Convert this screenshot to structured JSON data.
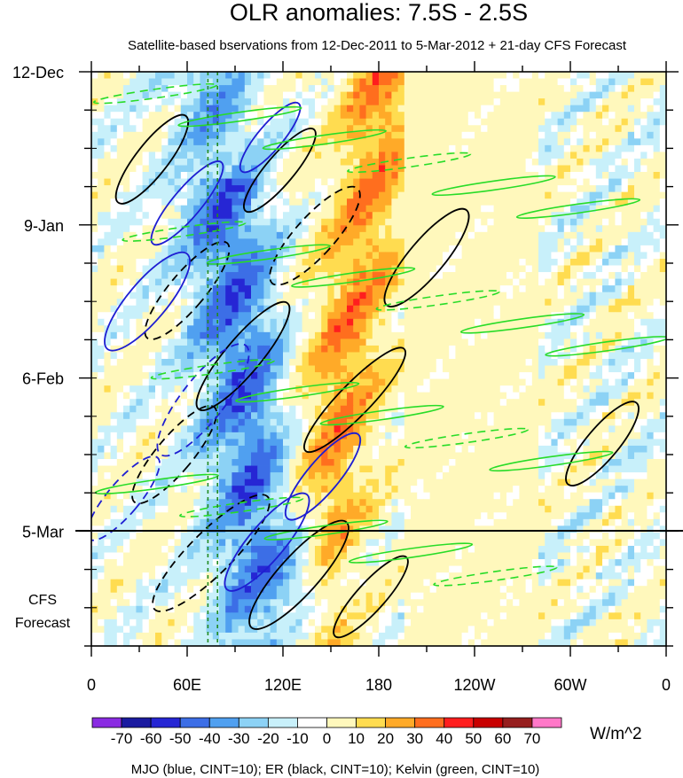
{
  "chart_data": {
    "type": "heatmap",
    "title": "OLR anomalies: 7.5S - 2.5S",
    "subtitle": "Satellite-based bservations from 12-Dec-2011 to 5-Mar-2012 + 21-day CFS Forecast",
    "x_ticks": [
      "0",
      "60E",
      "120E",
      "180",
      "120W",
      "60W",
      "0"
    ],
    "x_tick_lon": [
      0,
      60,
      120,
      180,
      240,
      300,
      360
    ],
    "xlim": [
      0,
      360
    ],
    "y_ticks": [
      "12-Dec",
      "9-Jan",
      "6-Feb",
      "5-Mar"
    ],
    "y_tick_day": [
      0,
      28,
      56,
      84
    ],
    "ylim_days": [
      0,
      105
    ],
    "forecast_start_day": 84,
    "forecast_label": [
      "CFS",
      "Forecast"
    ],
    "colorbar": {
      "labels": [
        "-70",
        "-60",
        "-50",
        "-40",
        "-30",
        "-20",
        "-10",
        "0",
        "10",
        "20",
        "30",
        "40",
        "50",
        "60",
        "70"
      ],
      "colors": [
        "#8a2be2",
        "#1a1aa0",
        "#2626d4",
        "#3c6ee6",
        "#50a0f0",
        "#8cd2f5",
        "#c8f0fa",
        "#ffffff",
        "#fff8bc",
        "#ffdc50",
        "#ffaa28",
        "#ff6e1e",
        "#ff1e1e",
        "#c80000",
        "#961e1e",
        "#ff78c8"
      ],
      "units": "W/m^2"
    },
    "contours": {
      "mjo": {
        "color": "#1e1ed2"
      },
      "er": {
        "color": "#000000"
      },
      "kelvin": {
        "color": "#28dc28"
      }
    },
    "footnote": "MJO (blue, CINT=10); ER (black, CINT=10); Kelvin (green, CINT=10)"
  }
}
